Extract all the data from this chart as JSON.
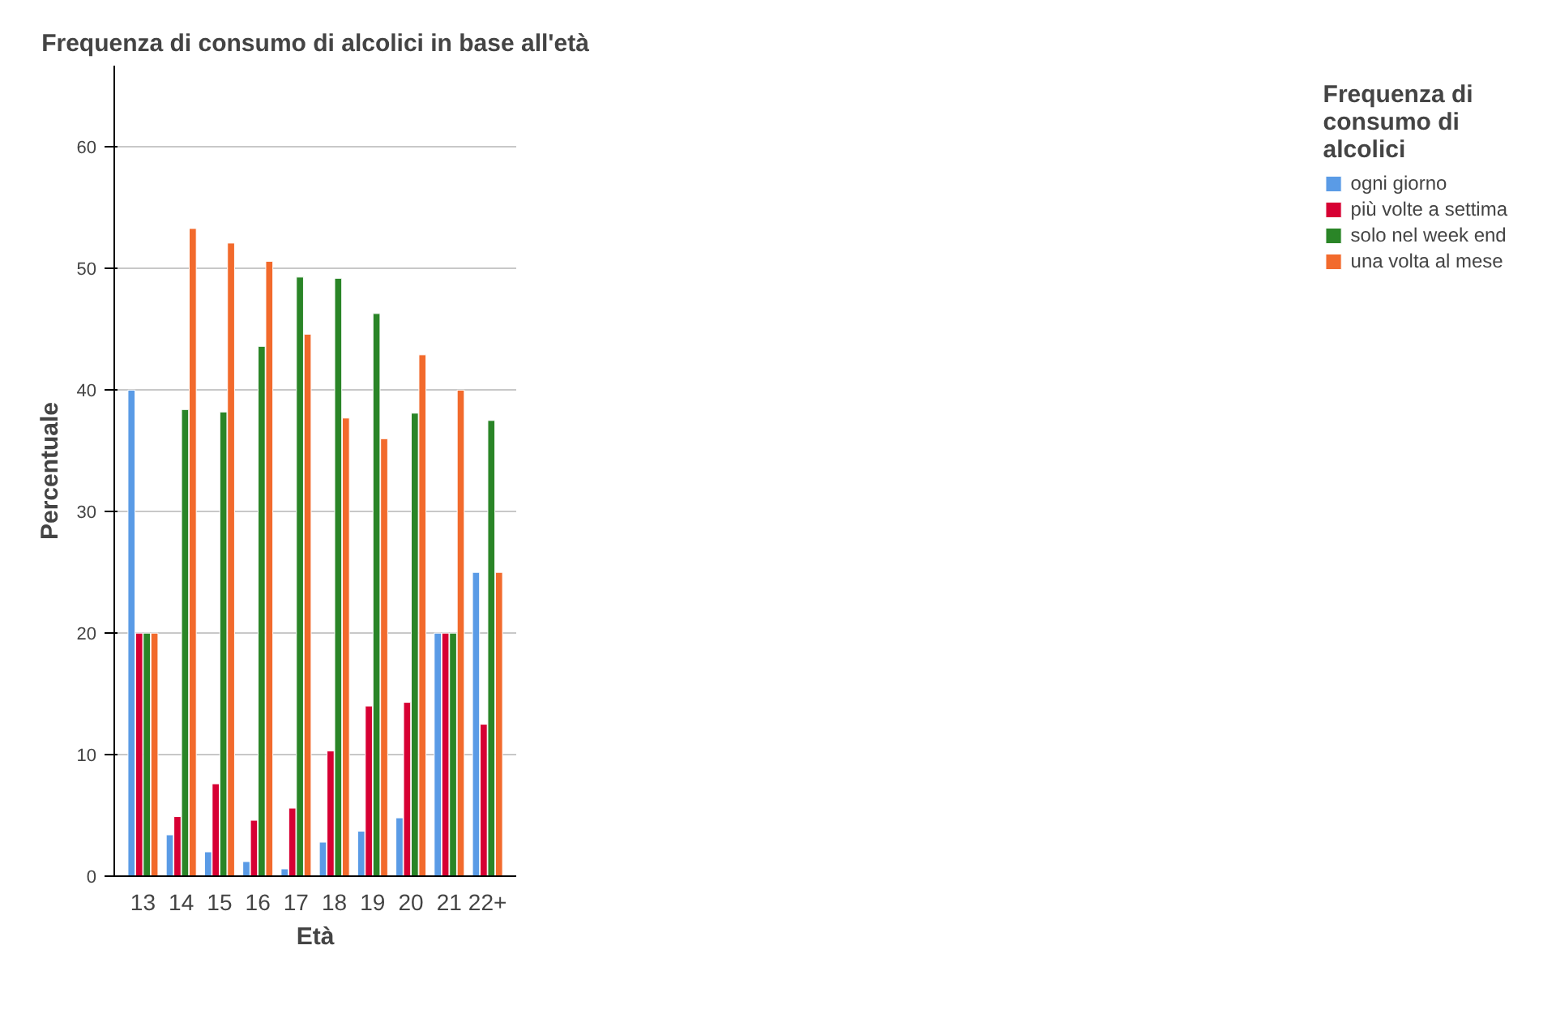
{
  "chart_data": {
    "type": "bar",
    "title": "Frequenza di consumo di alcolici in base all'età",
    "xlabel": "Età",
    "ylabel": "Percentuale",
    "legend_title": "Frequenza di consumo di alcolici",
    "categories": [
      "13",
      "14",
      "15",
      "16",
      "17",
      "18",
      "19",
      "20",
      "21",
      "22+"
    ],
    "series": [
      {
        "name": "ogni giorno",
        "color": "#5a9be6",
        "values": [
          40,
          3.4,
          2.0,
          1.2,
          0.6,
          2.8,
          3.7,
          4.8,
          20,
          25
        ]
      },
      {
        "name": "più volte a settima",
        "color": "#d70033",
        "values": [
          20,
          4.9,
          7.6,
          4.6,
          5.6,
          10.3,
          14.0,
          14.3,
          20,
          12.5
        ]
      },
      {
        "name": "solo nel week end",
        "color": "#2a8527",
        "values": [
          20,
          38.4,
          38.2,
          43.6,
          49.3,
          49.2,
          46.3,
          38.1,
          20,
          37.5
        ]
      },
      {
        "name": "una volta al mese",
        "color": "#f26a2c",
        "values": [
          20,
          53.3,
          52.1,
          50.6,
          44.6,
          37.7,
          36.0,
          42.9,
          40.0,
          25.0
        ]
      }
    ],
    "ylim": [
      0,
      66.7
    ],
    "yticks": [
      0,
      10,
      20,
      30,
      40,
      50,
      60
    ],
    "grid": "y",
    "legend": "right"
  }
}
